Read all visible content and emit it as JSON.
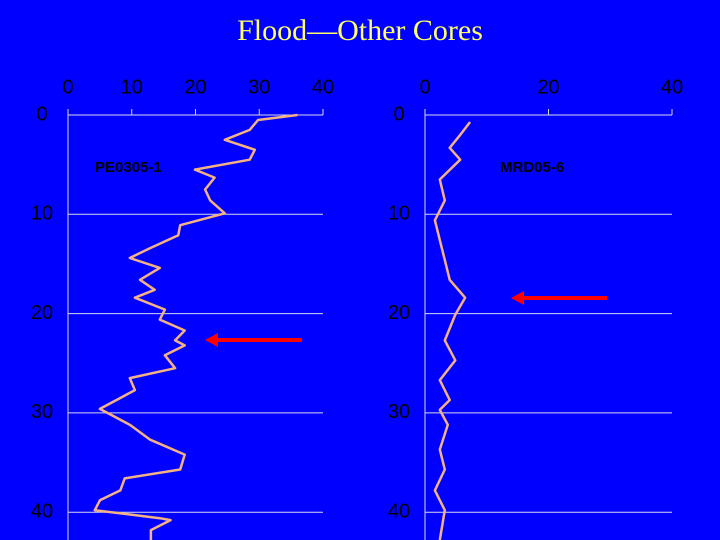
{
  "title": "Flood—Other Cores",
  "chart_data": [
    {
      "type": "line",
      "label": "PE0305-1",
      "color": "#f4b183",
      "grid": true,
      "y_inverted": true,
      "xlim": [
        0,
        40
      ],
      "xticks": [
        0,
        10,
        20,
        30,
        40
      ],
      "ylim": [
        0,
        42.8
      ],
      "yticks": [
        0,
        10,
        20,
        30,
        40
      ],
      "depth": [
        0,
        0.5,
        1.5,
        2.5,
        3.5,
        4.5,
        5.5,
        6.3,
        7.5,
        8.6,
        9.9,
        11.1,
        12.1,
        13.4,
        14.4,
        15.4,
        16.6,
        17.6,
        18.4,
        19.6,
        20.6,
        21.7,
        22.7,
        23.2,
        24.2,
        25.5,
        26.5,
        27.7,
        28.5,
        29.6,
        31.2,
        32.7,
        34.2,
        35.7,
        36.6,
        37.8,
        38.8,
        39.8,
        40.6,
        40.8,
        41.8,
        42.8
      ],
      "values": [
        36,
        29.8,
        28.5,
        24.6,
        29.3,
        28.5,
        19.9,
        23,
        21.5,
        22.3,
        24.6,
        17.6,
        17.3,
        12.9,
        9.7,
        14.4,
        11.3,
        13.6,
        10.5,
        15.2,
        14.4,
        18.3,
        16.8,
        18.3,
        15.2,
        16.8,
        9.7,
        10.5,
        8.2,
        5,
        9.7,
        12.9,
        18.3,
        17.6,
        8.9,
        8.2,
        5,
        4.2,
        14.4,
        16.1,
        13,
        13
      ]
    },
    {
      "type": "line",
      "label": "MRD05-6",
      "color": "#f4b183",
      "grid": true,
      "y_inverted": true,
      "xlim": [
        0,
        40
      ],
      "xticks": [
        0,
        20,
        40
      ],
      "ylim": [
        0,
        42.8
      ],
      "yticks": [
        0,
        10,
        20,
        30,
        40
      ],
      "depth": [
        0.7,
        2,
        3.3,
        4.5,
        6.5,
        8.6,
        10.6,
        12.6,
        14.6,
        16.6,
        18.4,
        20.1,
        22.7,
        24.7,
        26.7,
        28.7,
        29.7,
        31.2,
        33.7,
        35.7,
        37.8,
        39.8,
        42.8
      ],
      "values": [
        7.3,
        5.7,
        4,
        5.7,
        2.4,
        3.2,
        1.6,
        2.4,
        3.2,
        4,
        6.5,
        4.9,
        3.2,
        4.9,
        2.4,
        4,
        2.4,
        3.7,
        2.4,
        3.2,
        1.6,
        3.2,
        2.4
      ]
    }
  ]
}
